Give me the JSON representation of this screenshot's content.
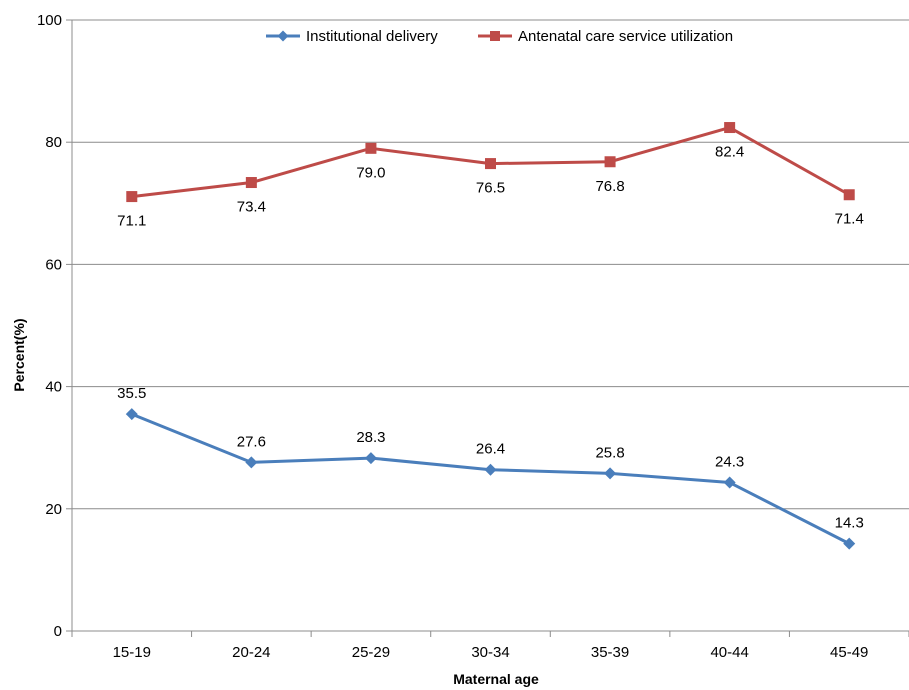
{
  "chart_data": {
    "type": "line",
    "title": "",
    "xlabel": "Maternal age",
    "ylabel": "Percent(%)",
    "ylim": [
      0,
      100
    ],
    "yticks": [
      0,
      20,
      40,
      60,
      80,
      100
    ],
    "grid": "horizontal",
    "legend_position": "top",
    "categories": [
      "15-19",
      "20-24",
      "25-29",
      "30-34",
      "35-39",
      "40-44",
      "45-49"
    ],
    "series": [
      {
        "name": "Institutional delivery",
        "color": "#4a7ebb",
        "marker": "diamond",
        "label_position": "above",
        "values": [
          35.5,
          27.6,
          28.3,
          26.4,
          25.8,
          24.3,
          14.3
        ],
        "labels": [
          "35.5",
          "27.6",
          "28.3",
          "26.4",
          "25.8",
          "24.3",
          "14.3"
        ]
      },
      {
        "name": "Antenatal care service utilization",
        "color": "#be4b48",
        "marker": "square",
        "label_position": "below",
        "values": [
          71.1,
          73.4,
          79.0,
          76.5,
          76.8,
          82.4,
          71.4
        ],
        "labels": [
          "71.1",
          "73.4",
          "79.0",
          "76.5",
          "76.8",
          "82.4",
          "71.4"
        ]
      }
    ]
  }
}
